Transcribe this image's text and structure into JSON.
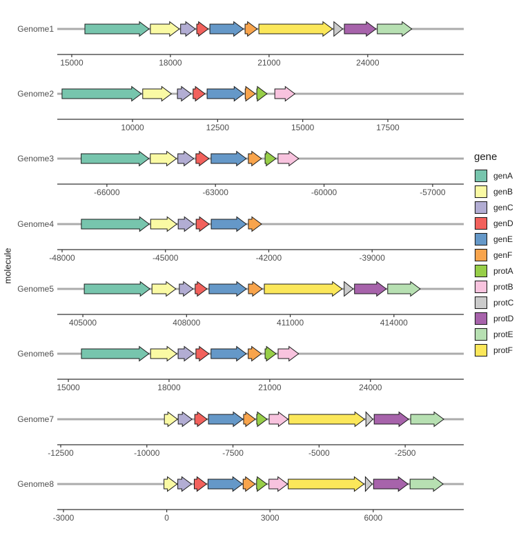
{
  "chart_data": {
    "type": "gene_arrow_map",
    "title": "",
    "ylabel": "molecule",
    "background": "#FFFFFF",
    "line_color": "#ABABAB",
    "axis_line_color": "#333333",
    "axis_text_color": "#4D4D4D",
    "arrow_outline": "#1A1A1A",
    "legend": {
      "title": "gene",
      "position": "right",
      "items": [
        {
          "label": "genA",
          "color": "#77C5AD"
        },
        {
          "label": "genB",
          "color": "#FAFAA4"
        },
        {
          "label": "genC",
          "color": "#B2ADD3"
        },
        {
          "label": "genD",
          "color": "#F2615C"
        },
        {
          "label": "genE",
          "color": "#6598C8"
        },
        {
          "label": "genF",
          "color": "#F8A44C"
        },
        {
          "label": "protA",
          "color": "#97CE48"
        },
        {
          "label": "protB",
          "color": "#F8C3DE"
        },
        {
          "label": "protC",
          "color": "#CBCBCB"
        },
        {
          "label": "protD",
          "color": "#A763AB"
        },
        {
          "label": "protE",
          "color": "#B7E0B2"
        },
        {
          "label": "protF",
          "color": "#FBE75A"
        }
      ]
    },
    "genomes": [
      {
        "name": "Genome1",
        "xlim": [
          14560,
          26920
        ],
        "ticks": [
          15000,
          18000,
          21000,
          24000
        ],
        "genes": [
          {
            "gene": "genA",
            "start": 15400,
            "end": 17350
          },
          {
            "gene": "genB",
            "start": 17390,
            "end": 18270
          },
          {
            "gene": "genC",
            "start": 18310,
            "end": 18760
          },
          {
            "gene": "genD",
            "start": 18800,
            "end": 19150
          },
          {
            "gene": "genE",
            "start": 19200,
            "end": 20220
          },
          {
            "gene": "genF",
            "start": 20270,
            "end": 20640
          },
          {
            "gene": "protF",
            "start": 20690,
            "end": 22930
          },
          {
            "gene": "protC",
            "start": 22970,
            "end": 23240
          },
          {
            "gene": "protD",
            "start": 23290,
            "end": 24250
          },
          {
            "gene": "protE",
            "start": 24290,
            "end": 25340
          }
        ]
      },
      {
        "name": "Genome2",
        "xlim": [
          7790,
          19730
        ],
        "ticks": [
          10000,
          12500,
          15000,
          17500
        ],
        "genes": [
          {
            "gene": "genA",
            "start": 7930,
            "end": 10260
          },
          {
            "gene": "genB",
            "start": 10300,
            "end": 11140
          },
          {
            "gene": "genC",
            "start": 11320,
            "end": 11720
          },
          {
            "gene": "genD",
            "start": 11780,
            "end": 12130
          },
          {
            "gene": "genE",
            "start": 12190,
            "end": 13270
          },
          {
            "gene": "genF",
            "start": 13310,
            "end": 13610
          },
          {
            "gene": "protA",
            "start": 13650,
            "end": 13950
          },
          {
            "gene": "protB",
            "start": 14180,
            "end": 14770
          }
        ]
      },
      {
        "name": "Genome3",
        "xlim": [
          -67370,
          -56140
        ],
        "ticks": [
          -66000,
          -63000,
          -60000,
          -57000
        ],
        "genes": [
          {
            "gene": "genA",
            "start": -66710,
            "end": -64840
          },
          {
            "gene": "genB",
            "start": -64800,
            "end": -64080
          },
          {
            "gene": "genC",
            "start": -64040,
            "end": -63600
          },
          {
            "gene": "genD",
            "start": -63540,
            "end": -63180
          },
          {
            "gene": "genE",
            "start": -63120,
            "end": -62150
          },
          {
            "gene": "genF",
            "start": -62090,
            "end": -61730
          },
          {
            "gene": "protA",
            "start": -61630,
            "end": -61330
          },
          {
            "gene": "protB",
            "start": -61270,
            "end": -60700
          }
        ]
      },
      {
        "name": "Genome4",
        "xlim": [
          -48140,
          -36340
        ],
        "ticks": [
          -48000,
          -45000,
          -42000,
          -39000
        ],
        "genes": [
          {
            "gene": "genA",
            "start": -47440,
            "end": -45470
          },
          {
            "gene": "genB",
            "start": -45430,
            "end": -44670
          },
          {
            "gene": "genC",
            "start": -44630,
            "end": -44170
          },
          {
            "gene": "genD",
            "start": -44110,
            "end": -43730
          },
          {
            "gene": "genE",
            "start": -43670,
            "end": -42650
          },
          {
            "gene": "genF",
            "start": -42590,
            "end": -42210
          }
        ]
      },
      {
        "name": "Genome5",
        "xlim": [
          404260,
          416020
        ],
        "ticks": [
          405000,
          408000,
          411000,
          414000
        ],
        "genes": [
          {
            "gene": "genA",
            "start": 405040,
            "end": 406940
          },
          {
            "gene": "genB",
            "start": 407000,
            "end": 407690
          },
          {
            "gene": "genC",
            "start": 407790,
            "end": 408190
          },
          {
            "gene": "genD",
            "start": 408250,
            "end": 408590
          },
          {
            "gene": "genE",
            "start": 408650,
            "end": 409730
          },
          {
            "gene": "genF",
            "start": 409790,
            "end": 410190
          },
          {
            "gene": "protF",
            "start": 410250,
            "end": 412500
          },
          {
            "gene": "protC",
            "start": 412560,
            "end": 412820
          },
          {
            "gene": "protD",
            "start": 412860,
            "end": 413780
          },
          {
            "gene": "protE",
            "start": 413820,
            "end": 414760
          }
        ]
      },
      {
        "name": "Genome6",
        "xlim": [
          14670,
          26780
        ],
        "ticks": [
          15000,
          18000,
          21000,
          24000
        ],
        "genes": [
          {
            "gene": "genA",
            "start": 15390,
            "end": 17400
          },
          {
            "gene": "genB",
            "start": 17450,
            "end": 18230
          },
          {
            "gene": "genC",
            "start": 18270,
            "end": 18740
          },
          {
            "gene": "genD",
            "start": 18800,
            "end": 19190
          },
          {
            "gene": "genE",
            "start": 19250,
            "end": 20300
          },
          {
            "gene": "genF",
            "start": 20360,
            "end": 20750
          },
          {
            "gene": "protA",
            "start": 20860,
            "end": 21190
          },
          {
            "gene": "protB",
            "start": 21250,
            "end": 21860
          }
        ]
      },
      {
        "name": "Genome7",
        "xlim": [
          -12600,
          -800
        ],
        "ticks": [
          -12500,
          -10000,
          -7500,
          -5000,
          -2500
        ],
        "genes": [
          {
            "gene": "genB",
            "start": -9490,
            "end": -9110
          },
          {
            "gene": "genC",
            "start": -9090,
            "end": -8690
          },
          {
            "gene": "genD",
            "start": -8610,
            "end": -8250
          },
          {
            "gene": "genE",
            "start": -8210,
            "end": -7210
          },
          {
            "gene": "genF",
            "start": -7190,
            "end": -6850
          },
          {
            "gene": "protA",
            "start": -6810,
            "end": -6510
          },
          {
            "gene": "protB",
            "start": -6450,
            "end": -5900
          },
          {
            "gene": "protF",
            "start": -5880,
            "end": -3680
          },
          {
            "gene": "protC",
            "start": -3640,
            "end": -3440
          },
          {
            "gene": "protD",
            "start": -3400,
            "end": -2400
          },
          {
            "gene": "protE",
            "start": -2340,
            "end": -1380
          }
        ]
      },
      {
        "name": "Genome8",
        "xlim": [
          -3180,
          8630
        ],
        "ticks": [
          -3000,
          0,
          3000,
          6000
        ],
        "genes": [
          {
            "gene": "genB",
            "start": -80,
            "end": 300
          },
          {
            "gene": "genC",
            "start": 320,
            "end": 720
          },
          {
            "gene": "genD",
            "start": 800,
            "end": 1160
          },
          {
            "gene": "genE",
            "start": 1200,
            "end": 2200
          },
          {
            "gene": "genF",
            "start": 2220,
            "end": 2570
          },
          {
            "gene": "protA",
            "start": 2610,
            "end": 2910
          },
          {
            "gene": "protB",
            "start": 2970,
            "end": 3510
          },
          {
            "gene": "protF",
            "start": 3530,
            "end": 5730
          },
          {
            "gene": "protC",
            "start": 5770,
            "end": 5970
          },
          {
            "gene": "protD",
            "start": 6010,
            "end": 7010
          },
          {
            "gene": "protE",
            "start": 7070,
            "end": 8030
          }
        ]
      }
    ]
  }
}
